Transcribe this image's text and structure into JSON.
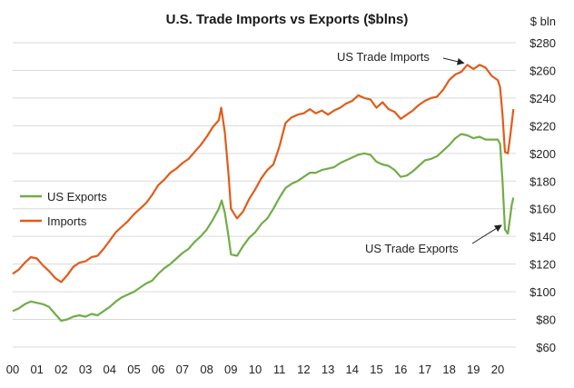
{
  "chart_data": {
    "type": "line",
    "title": "U.S. Trade Imports vs Exports ($blns)",
    "y_unit_label": "$ bln",
    "ylim": [
      60,
      280
    ],
    "y_ticks": [
      60,
      80,
      100,
      120,
      140,
      160,
      180,
      200,
      220,
      240,
      260,
      280
    ],
    "y_tick_labels": [
      "$60",
      "$80",
      "$100",
      "$120",
      "$140",
      "$160",
      "$180",
      "$200",
      "$220",
      "$240",
      "$260",
      "$280"
    ],
    "x_ticks": [
      2000,
      2001,
      2002,
      2003,
      2004,
      2005,
      2006,
      2007,
      2008,
      2009,
      2010,
      2011,
      2012,
      2013,
      2014,
      2015,
      2016,
      2017,
      2018,
      2019,
      2020
    ],
    "x_tick_labels": [
      "00",
      "01",
      "02",
      "03",
      "04",
      "05",
      "06",
      "07",
      "08",
      "09",
      "10",
      "11",
      "12",
      "13",
      "14",
      "15",
      "16",
      "17",
      "18",
      "19",
      "20"
    ],
    "xlim": [
      2000.0,
      2020.75
    ],
    "grid": true,
    "legend_position": "left-middle",
    "series": [
      {
        "name": "US Exports",
        "color": "#70ad47",
        "points": [
          [
            2000.0,
            86
          ],
          [
            2000.25,
            88
          ],
          [
            2000.5,
            91
          ],
          [
            2000.75,
            93
          ],
          [
            2001.0,
            92
          ],
          [
            2001.25,
            91
          ],
          [
            2001.5,
            89
          ],
          [
            2001.75,
            84
          ],
          [
            2002.0,
            79
          ],
          [
            2002.25,
            80
          ],
          [
            2002.5,
            82
          ],
          [
            2002.75,
            83
          ],
          [
            2003.0,
            82
          ],
          [
            2003.25,
            84
          ],
          [
            2003.5,
            83
          ],
          [
            2003.75,
            86
          ],
          [
            2004.0,
            89
          ],
          [
            2004.25,
            93
          ],
          [
            2004.5,
            96
          ],
          [
            2004.75,
            98
          ],
          [
            2005.0,
            100
          ],
          [
            2005.25,
            103
          ],
          [
            2005.5,
            106
          ],
          [
            2005.75,
            108
          ],
          [
            2006.0,
            113
          ],
          [
            2006.25,
            117
          ],
          [
            2006.5,
            120
          ],
          [
            2006.75,
            124
          ],
          [
            2007.0,
            128
          ],
          [
            2007.25,
            131
          ],
          [
            2007.5,
            136
          ],
          [
            2007.75,
            140
          ],
          [
            2008.0,
            145
          ],
          [
            2008.25,
            152
          ],
          [
            2008.5,
            160
          ],
          [
            2008.62,
            166
          ],
          [
            2008.75,
            157
          ],
          [
            2008.9,
            140
          ],
          [
            2009.0,
            127
          ],
          [
            2009.25,
            126
          ],
          [
            2009.5,
            133
          ],
          [
            2009.75,
            139
          ],
          [
            2010.0,
            143
          ],
          [
            2010.25,
            149
          ],
          [
            2010.5,
            153
          ],
          [
            2010.75,
            160
          ],
          [
            2011.0,
            168
          ],
          [
            2011.25,
            175
          ],
          [
            2011.5,
            178
          ],
          [
            2011.75,
            180
          ],
          [
            2012.0,
            183
          ],
          [
            2012.25,
            186
          ],
          [
            2012.5,
            186
          ],
          [
            2012.75,
            188
          ],
          [
            2013.0,
            189
          ],
          [
            2013.25,
            190
          ],
          [
            2013.5,
            193
          ],
          [
            2013.75,
            195
          ],
          [
            2014.0,
            197
          ],
          [
            2014.25,
            199
          ],
          [
            2014.5,
            200
          ],
          [
            2014.75,
            199
          ],
          [
            2015.0,
            194
          ],
          [
            2015.25,
            192
          ],
          [
            2015.5,
            191
          ],
          [
            2015.75,
            188
          ],
          [
            2016.0,
            183
          ],
          [
            2016.25,
            184
          ],
          [
            2016.5,
            187
          ],
          [
            2016.75,
            191
          ],
          [
            2017.0,
            195
          ],
          [
            2017.25,
            196
          ],
          [
            2017.5,
            198
          ],
          [
            2017.75,
            202
          ],
          [
            2018.0,
            206
          ],
          [
            2018.25,
            211
          ],
          [
            2018.5,
            214
          ],
          [
            2018.75,
            213
          ],
          [
            2019.0,
            211
          ],
          [
            2019.25,
            212
          ],
          [
            2019.5,
            210
          ],
          [
            2019.75,
            210
          ],
          [
            2020.0,
            210
          ],
          [
            2020.1,
            207
          ],
          [
            2020.2,
            180
          ],
          [
            2020.3,
            145
          ],
          [
            2020.42,
            142
          ],
          [
            2020.5,
            152
          ],
          [
            2020.58,
            163
          ],
          [
            2020.65,
            168
          ]
        ]
      },
      {
        "name": "Imports",
        "color": "#e05c1a",
        "points": [
          [
            2000.0,
            113
          ],
          [
            2000.25,
            116
          ],
          [
            2000.5,
            121
          ],
          [
            2000.75,
            125
          ],
          [
            2001.0,
            124
          ],
          [
            2001.25,
            119
          ],
          [
            2001.5,
            115
          ],
          [
            2001.75,
            110
          ],
          [
            2002.0,
            107
          ],
          [
            2002.25,
            112
          ],
          [
            2002.5,
            118
          ],
          [
            2002.75,
            121
          ],
          [
            2003.0,
            122
          ],
          [
            2003.25,
            125
          ],
          [
            2003.5,
            126
          ],
          [
            2003.75,
            131
          ],
          [
            2004.0,
            137
          ],
          [
            2004.25,
            143
          ],
          [
            2004.5,
            147
          ],
          [
            2004.75,
            151
          ],
          [
            2005.0,
            156
          ],
          [
            2005.25,
            160
          ],
          [
            2005.5,
            164
          ],
          [
            2005.75,
            170
          ],
          [
            2006.0,
            177
          ],
          [
            2006.25,
            181
          ],
          [
            2006.5,
            186
          ],
          [
            2006.75,
            189
          ],
          [
            2007.0,
            193
          ],
          [
            2007.25,
            196
          ],
          [
            2007.5,
            201
          ],
          [
            2007.75,
            206
          ],
          [
            2008.0,
            212
          ],
          [
            2008.25,
            219
          ],
          [
            2008.5,
            224
          ],
          [
            2008.6,
            233
          ],
          [
            2008.75,
            215
          ],
          [
            2008.9,
            185
          ],
          [
            2009.0,
            160
          ],
          [
            2009.25,
            153
          ],
          [
            2009.5,
            158
          ],
          [
            2009.75,
            167
          ],
          [
            2010.0,
            174
          ],
          [
            2010.25,
            182
          ],
          [
            2010.5,
            188
          ],
          [
            2010.75,
            192
          ],
          [
            2011.0,
            205
          ],
          [
            2011.25,
            222
          ],
          [
            2011.5,
            226
          ],
          [
            2011.75,
            228
          ],
          [
            2012.0,
            229
          ],
          [
            2012.25,
            232
          ],
          [
            2012.5,
            229
          ],
          [
            2012.75,
            231
          ],
          [
            2013.0,
            228
          ],
          [
            2013.25,
            231
          ],
          [
            2013.5,
            233
          ],
          [
            2013.75,
            236
          ],
          [
            2014.0,
            238
          ],
          [
            2014.25,
            242
          ],
          [
            2014.5,
            240
          ],
          [
            2014.75,
            239
          ],
          [
            2015.0,
            233
          ],
          [
            2015.25,
            237
          ],
          [
            2015.5,
            232
          ],
          [
            2015.75,
            230
          ],
          [
            2016.0,
            225
          ],
          [
            2016.25,
            228
          ],
          [
            2016.5,
            231
          ],
          [
            2016.75,
            235
          ],
          [
            2017.0,
            238
          ],
          [
            2017.25,
            240
          ],
          [
            2017.5,
            241
          ],
          [
            2017.75,
            246
          ],
          [
            2018.0,
            253
          ],
          [
            2018.25,
            257
          ],
          [
            2018.5,
            259
          ],
          [
            2018.75,
            264
          ],
          [
            2019.0,
            261
          ],
          [
            2019.25,
            264
          ],
          [
            2019.5,
            262
          ],
          [
            2019.75,
            256
          ],
          [
            2020.0,
            253
          ],
          [
            2020.1,
            248
          ],
          [
            2020.2,
            228
          ],
          [
            2020.3,
            201
          ],
          [
            2020.42,
            200
          ],
          [
            2020.5,
            210
          ],
          [
            2020.58,
            222
          ],
          [
            2020.65,
            232
          ]
        ]
      }
    ],
    "annotations": [
      {
        "text": "US Trade Imports",
        "x": 2018.75,
        "y": 264
      },
      {
        "text": "US Trade Exports",
        "x": 2020.3,
        "y": 152
      }
    ]
  }
}
